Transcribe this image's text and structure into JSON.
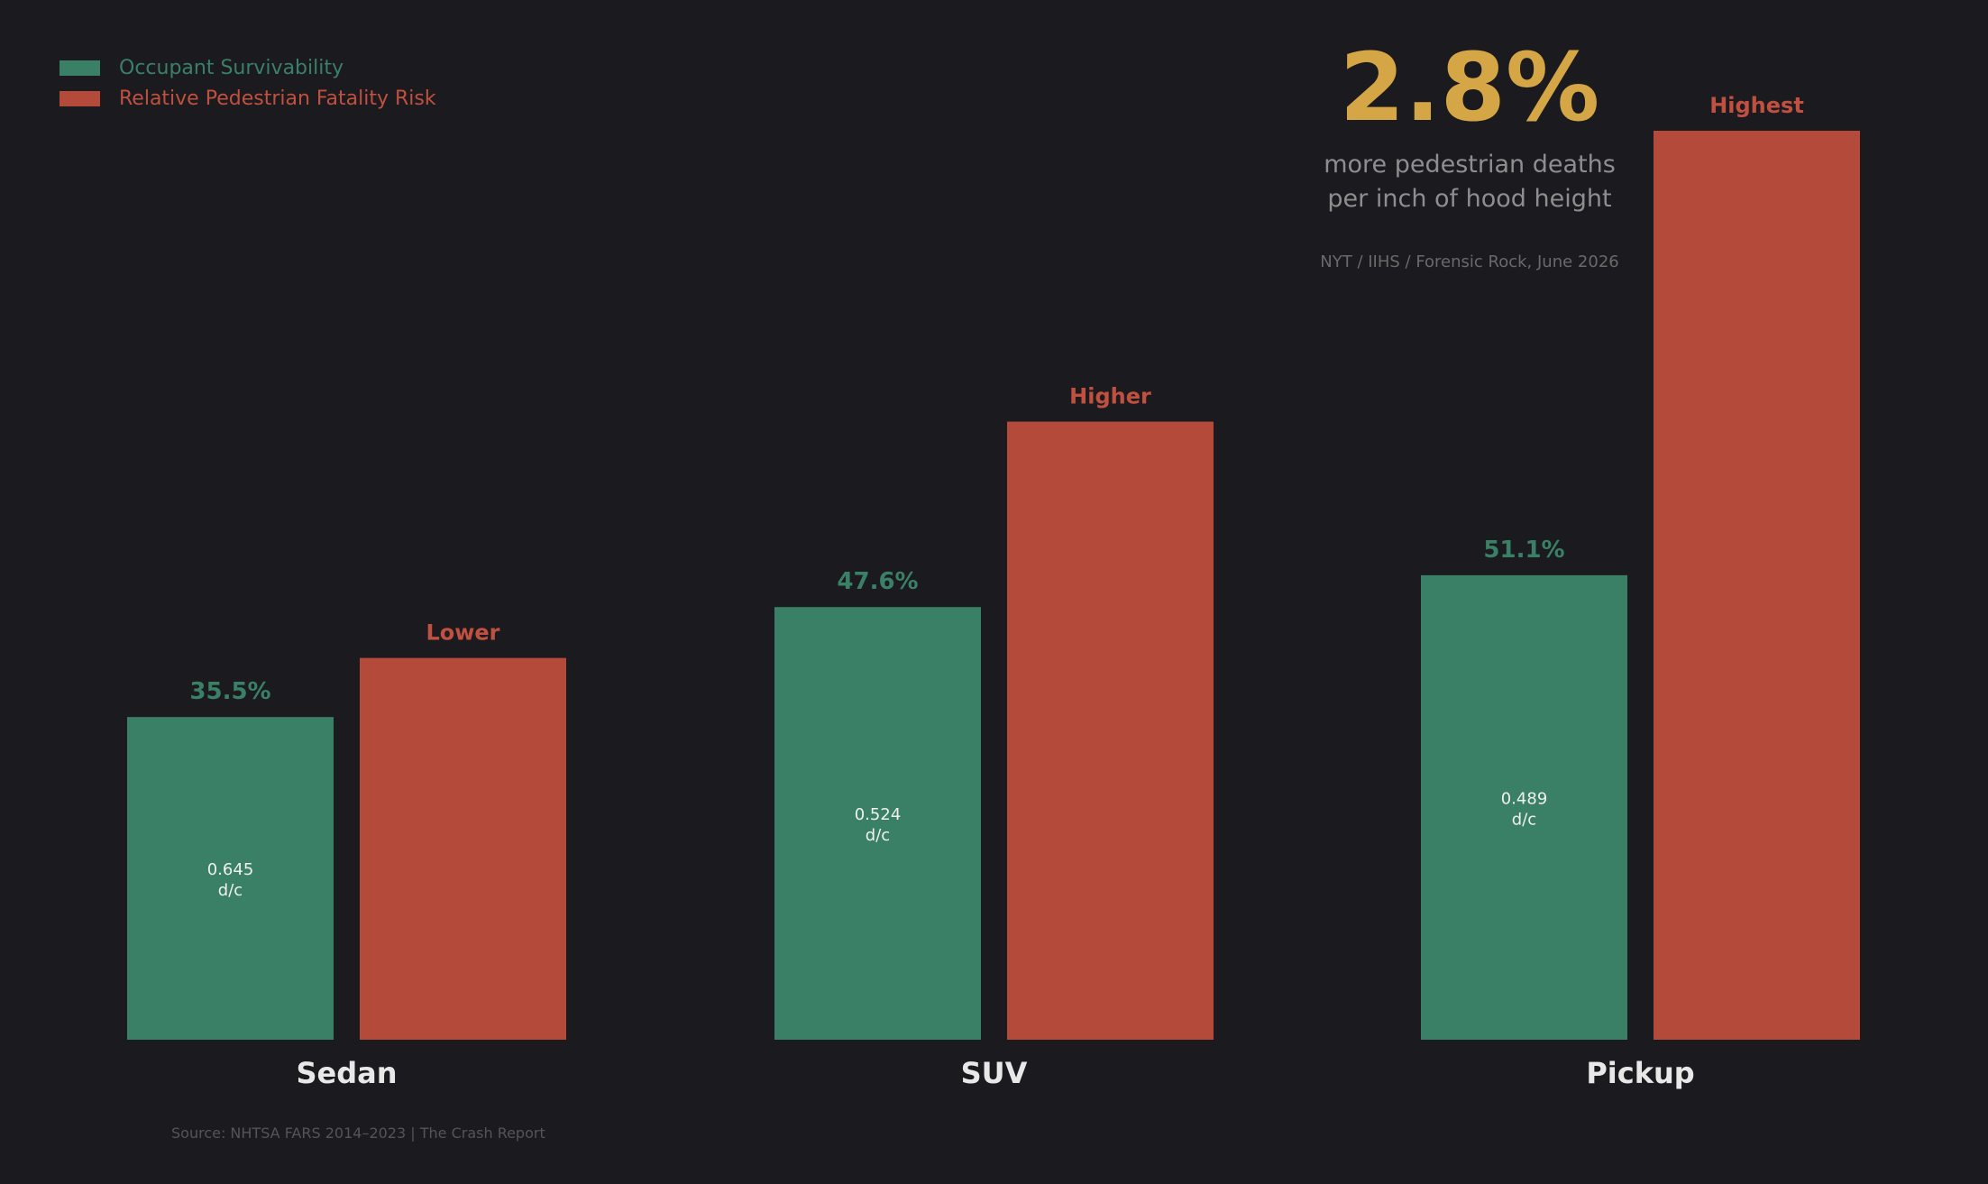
{
  "colors": {
    "background": "#1b1a1e",
    "survivability": "#3a8066",
    "risk": "#b34a3a",
    "callout": "#d4a645",
    "category_label": "#e8e8e8"
  },
  "legend": [
    {
      "label": "Occupant Survivability",
      "color": "#3a8066"
    },
    {
      "label": "Relative Pedestrian Fatality Risk",
      "color": "#b34a3a"
    }
  ],
  "callout": {
    "value": "2.8%",
    "line1": "more pedestrian deaths",
    "line2": "per inch of hood height",
    "source": "NYT / IIHS / Forensic Rock, June 2026"
  },
  "footer": "Source: NHTSA FARS 2014–2023  |  The Crash Report",
  "chart_data": {
    "type": "bar",
    "title": "",
    "xlabel": "",
    "ylabel": "",
    "grid": false,
    "legend_position": "top-left",
    "categories": [
      "Sedan",
      "SUV",
      "Pickup"
    ],
    "ylim": [
      0,
      1
    ],
    "series": [
      {
        "name": "Occupant Survivability",
        "values": [
          0.355,
          0.476,
          0.511
        ],
        "labels": [
          "35.5%",
          "47.6%",
          "51.1%"
        ],
        "inner_labels": [
          [
            "0.645",
            "d/c"
          ],
          [
            "0.524",
            "d/c"
          ],
          [
            "0.489",
            "d/c"
          ]
        ]
      },
      {
        "name": "Relative Pedestrian Fatality Risk",
        "values": [
          0.42,
          0.68,
          1.0
        ],
        "labels": [
          "Lower",
          "Higher",
          "Highest"
        ]
      }
    ]
  }
}
